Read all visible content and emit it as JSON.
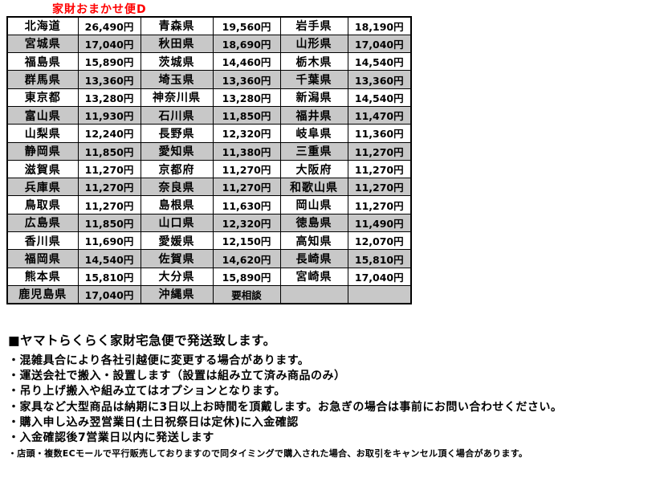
{
  "title": "家財おまかせ便D",
  "colors": {
    "title": "#ff0000",
    "row_alt_background": "#c8c8c8",
    "border": "#000000",
    "text": "#000000"
  },
  "table": {
    "columns_per_row": [
      "prefecture",
      "price",
      "prefecture",
      "price",
      "prefecture",
      "price"
    ],
    "rows": [
      [
        "北海道",
        "26,490円",
        "青森県",
        "19,560円",
        "岩手県",
        "18,190円"
      ],
      [
        "宮城県",
        "17,040円",
        "秋田県",
        "18,690円",
        "山形県",
        "17,040円"
      ],
      [
        "福島県",
        "15,890円",
        "茨城県",
        "14,460円",
        "栃木県",
        "14,540円"
      ],
      [
        "群馬県",
        "13,360円",
        "埼玉県",
        "13,360円",
        "千葉県",
        "13,360円"
      ],
      [
        "東京都",
        "13,280円",
        "神奈川県",
        "13,280円",
        "新潟県",
        "14,540円"
      ],
      [
        "富山県",
        "11,930円",
        "石川県",
        "11,850円",
        "福井県",
        "11,470円"
      ],
      [
        "山梨県",
        "12,240円",
        "長野県",
        "12,320円",
        "岐阜県",
        "11,360円"
      ],
      [
        "静岡県",
        "11,850円",
        "愛知県",
        "11,380円",
        "三重県",
        "11,270円"
      ],
      [
        "滋賀県",
        "11,270円",
        "京都府",
        "11,270円",
        "大阪府",
        "11,270円"
      ],
      [
        "兵庫県",
        "11,270円",
        "奈良県",
        "11,270円",
        "和歌山県",
        "11,270円"
      ],
      [
        "鳥取県",
        "11,270円",
        "島根県",
        "11,630円",
        "岡山県",
        "11,270円"
      ],
      [
        "広島県",
        "11,850円",
        "山口県",
        "12,320円",
        "徳島県",
        "11,490円"
      ],
      [
        "香川県",
        "11,690円",
        "愛媛県",
        "12,150円",
        "高知県",
        "12,070円"
      ],
      [
        "福岡県",
        "14,540円",
        "佐賀県",
        "14,620円",
        "長崎県",
        "15,810円"
      ],
      [
        "熊本県",
        "15,810円",
        "大分県",
        "15,890円",
        "宮崎県",
        "17,040円"
      ],
      [
        "鹿児島県",
        "17,040円",
        "沖縄県",
        "要相談",
        "",
        ""
      ]
    ]
  },
  "notes": {
    "heading": "■ヤマトらくらく家財宅急便で発送致します。",
    "bullets": [
      "・混雑具合により各社引越便に変更する場合があります。",
      "・運送会社で搬入・設置します（設置は組み立て済み商品のみ）",
      "・吊り上げ搬入や組み立てはオプションとなります。",
      "・家具など大型商品は納期に3日以上お時間を頂戴します。お急ぎの場合は事前にお問い合わせください。",
      "・購入申し込み翌営業日(土日祝祭日は定休)に入金確認",
      "・入金確認後7営業日以内に発送します"
    ],
    "footnote": "・店頭・複数ECモールで平行販売しておりますので同タイミングで購入された場合、お取引をキャンセル頂く場合があります。"
  }
}
